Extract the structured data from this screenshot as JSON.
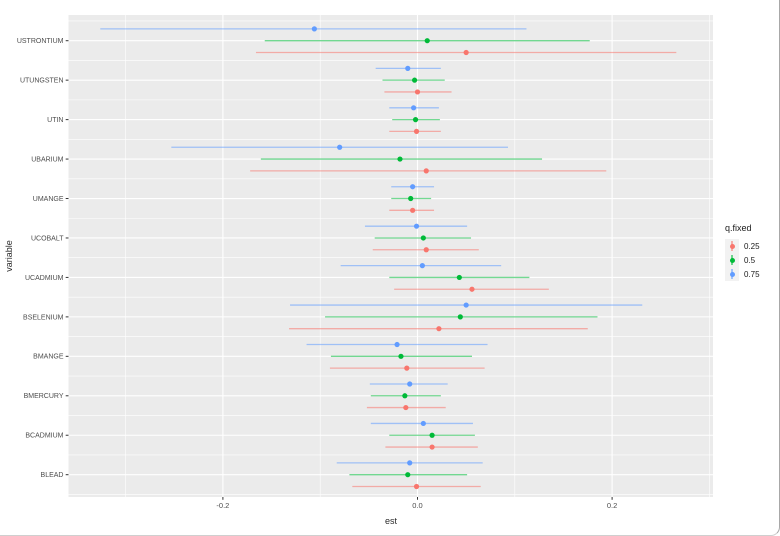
{
  "figure": {
    "y_axis_title": "variable",
    "x_axis_title": "est",
    "colors": {
      "panel_background": "#EBEBEB",
      "gridline": "#FFFFFF",
      "axis_tick_label": "#4D4D4D",
      "axis_title": "#2B2B2B",
      "tick_mark": "#333333",
      "legend_key_background": "#F2F2F2",
      "window_border": "#A8A8A8"
    },
    "legend": {
      "title": "q.fixed",
      "position": "right",
      "entries": [
        {
          "label": "0.25",
          "color": "#F8766D"
        },
        {
          "label": "0.5",
          "color": "#00BA38"
        },
        {
          "label": "0.75",
          "color": "#619CFF"
        }
      ]
    }
  },
  "chart_data": {
    "type": "scatter",
    "mark": "pointrange",
    "title": "",
    "xlabel": "est",
    "ylabel": "variable",
    "legend_title": "q.fixed",
    "legend_position": "right",
    "grid": true,
    "xlim": [
      -0.359,
      0.304
    ],
    "x_major_ticks": [
      -0.2,
      0.0,
      0.2
    ],
    "x_tick_labels": [
      "-0.2",
      "0.0",
      "0.2"
    ],
    "x_minor_gridlines": [
      -0.3,
      -0.1,
      0.1,
      0.3
    ],
    "categories": [
      "USTRONTIUM",
      "UTUNGSTEN",
      "UTIN",
      "UBARIUM",
      "UMANGE",
      "UCOBALT",
      "UCADMIUM",
      "BSELENIUM",
      "BMANGE",
      "BMERCURY",
      "BCADMIUM",
      "BLEAD"
    ],
    "series": [
      {
        "name": "0.25",
        "color": "#F8766D",
        "est": [
          0.05,
          0.0,
          -0.001,
          0.009,
          -0.005,
          0.009,
          0.056,
          0.022,
          -0.011,
          -0.012,
          0.015,
          -0.001
        ],
        "lower": [
          -0.166,
          -0.034,
          -0.029,
          -0.172,
          -0.029,
          -0.046,
          -0.024,
          -0.132,
          -0.09,
          -0.052,
          -0.033,
          -0.067
        ],
        "upper": [
          0.266,
          0.035,
          0.024,
          0.194,
          0.017,
          0.063,
          0.135,
          0.175,
          0.069,
          0.029,
          0.062,
          0.065
        ]
      },
      {
        "name": "0.5",
        "color": "#00BA38",
        "est": [
          0.01,
          -0.003,
          -0.002,
          -0.018,
          -0.007,
          0.006,
          0.043,
          0.044,
          -0.017,
          -0.013,
          0.015,
          -0.01
        ],
        "lower": [
          -0.157,
          -0.036,
          -0.026,
          -0.161,
          -0.027,
          -0.044,
          -0.029,
          -0.095,
          -0.089,
          -0.048,
          -0.029,
          -0.07
        ],
        "upper": [
          0.177,
          0.028,
          0.023,
          0.128,
          0.014,
          0.055,
          0.115,
          0.185,
          0.056,
          0.024,
          0.059,
          0.051
        ]
      },
      {
        "name": "0.75",
        "color": "#619CFF",
        "est": [
          -0.106,
          -0.01,
          -0.004,
          -0.08,
          -0.005,
          -0.001,
          0.005,
          0.05,
          -0.021,
          -0.008,
          0.006,
          -0.008
        ],
        "lower": [
          -0.326,
          -0.043,
          -0.029,
          -0.253,
          -0.027,
          -0.054,
          -0.079,
          -0.131,
          -0.114,
          -0.049,
          -0.048,
          -0.083
        ],
        "upper": [
          0.112,
          0.024,
          0.022,
          0.093,
          0.017,
          0.051,
          0.086,
          0.231,
          0.072,
          0.031,
          0.057,
          0.067
        ]
      }
    ]
  }
}
